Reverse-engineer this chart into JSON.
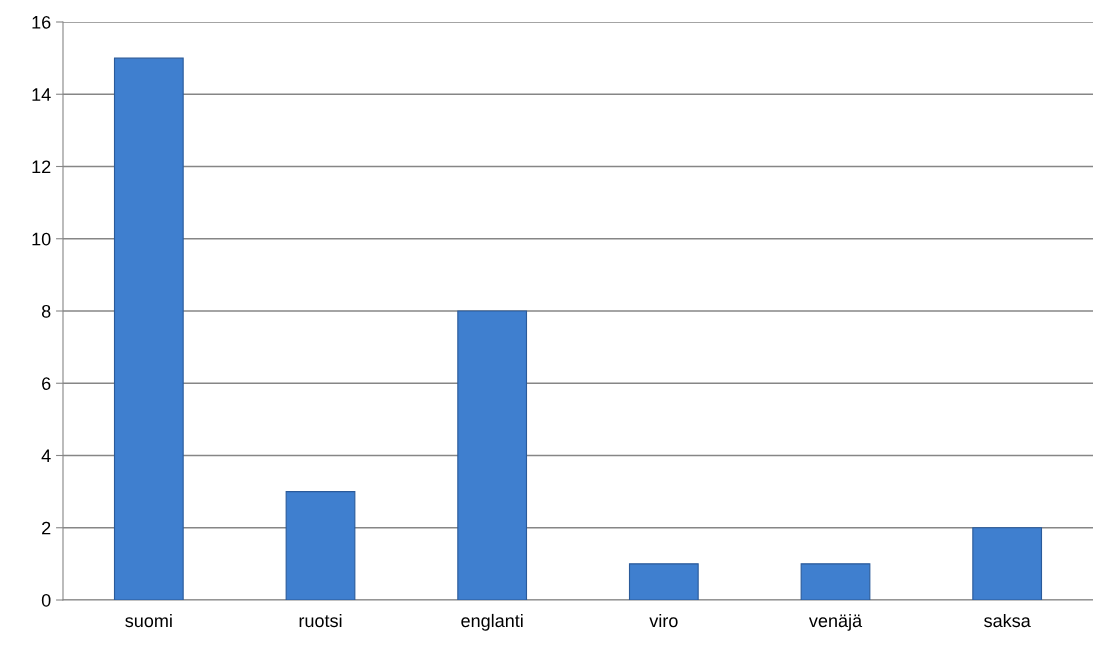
{
  "chart_data": {
    "type": "bar",
    "categories": [
      "suomi",
      "ruotsi",
      "englanti",
      "viro",
      "venäjä",
      "saksa"
    ],
    "values": [
      15,
      3,
      8,
      1,
      1,
      2
    ],
    "color": "#3f7fcf",
    "ylim": [
      0,
      16
    ],
    "yticks": [
      0,
      2,
      4,
      6,
      8,
      10,
      12,
      14,
      16
    ],
    "grid": "y"
  }
}
